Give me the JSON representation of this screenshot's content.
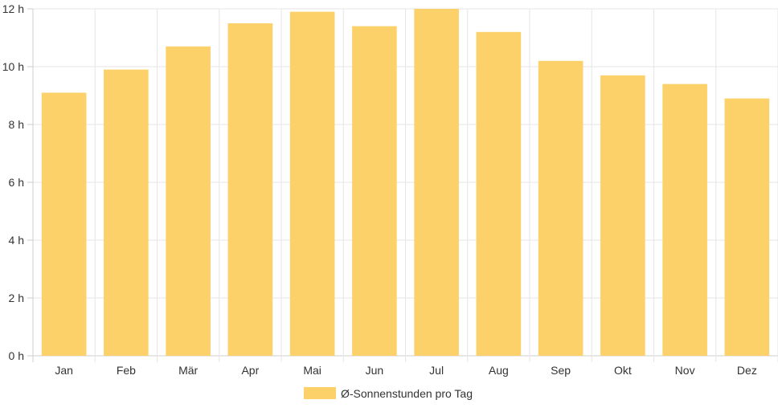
{
  "chart_data": {
    "type": "bar",
    "categories": [
      "Jan",
      "Feb",
      "Mär",
      "Apr",
      "Mai",
      "Jun",
      "Jul",
      "Aug",
      "Sep",
      "Okt",
      "Nov",
      "Dez"
    ],
    "series": [
      {
        "name": "Ø-Sonnenstunden pro Tag",
        "values": [
          9.1,
          9.9,
          10.7,
          11.5,
          11.9,
          11.4,
          12.0,
          11.2,
          10.2,
          9.7,
          9.4,
          8.9
        ],
        "color": "#fdd16a"
      }
    ],
    "yticks": [
      "0 h",
      "2 h",
      "4 h",
      "6 h",
      "8 h",
      "10 h",
      "12 h"
    ],
    "ylim": [
      0,
      12
    ],
    "grid": true,
    "legend_position": "bottom"
  }
}
